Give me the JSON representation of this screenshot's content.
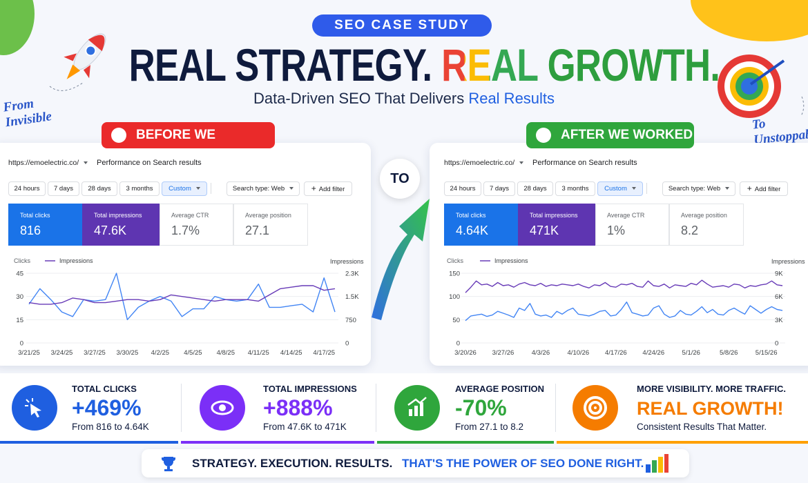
{
  "badge": "SEO CASE STUDY",
  "title": {
    "part_a": "REAL STRATEGY.",
    "part_b": "REAL",
    "part_c": "GROWTH."
  },
  "subtitle": {
    "text": "Data-Driven SEO That Delivers",
    "highlight": "Real Results"
  },
  "notes": {
    "from": "From Invisible",
    "to": "To Unstoppable"
  },
  "connector": "TO",
  "panels": [
    {
      "label": "BEFORE WE WORKED",
      "site": "https://emoelectric.co/",
      "report": "Performance on Search results",
      "ranges": [
        "24 hours",
        "7 days",
        "28 days",
        "3 months",
        "Custom"
      ],
      "search_type": "Search type: Web",
      "add_filter": "Add filter",
      "metrics": [
        {
          "label": "Total clicks",
          "value": "816"
        },
        {
          "label": "Total impressions",
          "value": "47.6K"
        },
        {
          "label": "Average CTR",
          "value": "1.7%"
        },
        {
          "label": "Average position",
          "value": "27.1"
        }
      ]
    },
    {
      "label": "AFTER WE WORKED",
      "site": "https://emoelectric.co/",
      "report": "Performance on Search results",
      "ranges": [
        "24 hours",
        "7 days",
        "28 days",
        "3 months",
        "Custom"
      ],
      "search_type": "Search type: Web",
      "add_filter": "Add filter",
      "metrics": [
        {
          "label": "Total clicks",
          "value": "4.64K"
        },
        {
          "label": "Total impressions",
          "value": "471K"
        },
        {
          "label": "Average CTR",
          "value": "1%"
        },
        {
          "label": "Average position",
          "value": "8.2"
        }
      ]
    }
  ],
  "stats": [
    {
      "label": "TOTAL CLICKS",
      "value": "+469%",
      "detail": "From 816 to 4.64K"
    },
    {
      "label": "TOTAL IMPRESSIONS",
      "value": "+888%",
      "detail": "From 47.6K to 471K"
    },
    {
      "label": "AVERAGE POSITION",
      "value": "-70%",
      "detail": "From 27.1 to 8.2"
    },
    {
      "label": "MORE VISIBILITY. MORE TRAFFIC.",
      "value": "REAL GROWTH!",
      "detail": "Consistent Results That Matter."
    }
  ],
  "footer": {
    "text": "STRATEGY. EXECUTION. RESULTS.",
    "highlight": "THAT'S THE POWER OF SEO DONE RIGHT."
  },
  "chart_data": [
    {
      "type": "line",
      "grid": true,
      "categories": [
        "3/21/25",
        null,
        null,
        "3/24/25",
        null,
        null,
        "3/27/25",
        null,
        null,
        "3/30/25",
        null,
        null,
        "4/2/25",
        null,
        null,
        "4/5/25",
        null,
        null,
        "4/8/25",
        null,
        null,
        "4/11/25",
        null,
        null,
        "4/14/25",
        null,
        null,
        "4/17/25",
        null
      ],
      "series": [
        {
          "name": "Clicks",
          "color": "#4285f4",
          "values": [
            25,
            35,
            28,
            20,
            17,
            28,
            27,
            28,
            45,
            15,
            23,
            27,
            30,
            27,
            17,
            22,
            22,
            30,
            28,
            27,
            28,
            38,
            23,
            23,
            24,
            25,
            20,
            42,
            20
          ]
        },
        {
          "name": "Impressions",
          "color": "#673ab7",
          "axis": "y2",
          "values": [
            1300,
            1250,
            1250,
            1300,
            1450,
            1400,
            1300,
            1300,
            1350,
            1400,
            1400,
            1350,
            1400,
            1550,
            1500,
            1450,
            1400,
            1350,
            1400,
            1400,
            1400,
            1350,
            1550,
            1750,
            1800,
            1850,
            1850,
            1700,
            1750
          ]
        }
      ],
      "y2_label": "Impressions",
      "ylim": [
        0,
        45
      ],
      "yticks": [
        0,
        15,
        30,
        45
      ],
      "y2lim": [
        0,
        2250
      ],
      "y2ticks": [
        0,
        750,
        {
          "value": 1500,
          "label": "1.5K"
        },
        {
          "value": 2250,
          "label": "2.3K"
        }
      ]
    },
    {
      "type": "line",
      "grid": true,
      "categories": [
        "3/20/26",
        null,
        null,
        null,
        null,
        null,
        null,
        "3/27/26",
        null,
        null,
        null,
        null,
        null,
        null,
        "4/3/26",
        null,
        null,
        null,
        null,
        null,
        null,
        "4/10/26",
        null,
        null,
        null,
        null,
        null,
        null,
        "4/17/26",
        null,
        null,
        null,
        null,
        null,
        null,
        "4/24/26",
        null,
        null,
        null,
        null,
        null,
        null,
        "5/1/26",
        null,
        null,
        null,
        null,
        null,
        null,
        "5/8/26",
        null,
        null,
        null,
        null,
        null,
        null,
        "5/15/26",
        null,
        null,
        null
      ],
      "series": [
        {
          "name": "Clicks",
          "color": "#4285f4",
          "values": [
            48,
            58,
            60,
            62,
            57,
            60,
            68,
            64,
            60,
            55,
            75,
            70,
            85,
            62,
            58,
            60,
            55,
            68,
            62,
            70,
            75,
            62,
            60,
            58,
            62,
            68,
            70,
            58,
            60,
            72,
            88,
            65,
            62,
            58,
            60,
            75,
            80,
            62,
            55,
            58,
            70,
            62,
            60,
            68,
            78,
            65,
            72,
            62,
            60,
            70,
            75,
            68,
            62,
            80,
            72,
            64,
            72,
            78,
            72,
            70
          ]
        },
        {
          "name": "Impressions",
          "color": "#673ab7",
          "axis": "y2",
          "values": [
            6500,
            7200,
            8000,
            7500,
            7600,
            7300,
            7800,
            7400,
            7500,
            7200,
            7600,
            7800,
            7500,
            7400,
            7700,
            7300,
            7500,
            7400,
            7600,
            7500,
            7400,
            7600,
            7300,
            7100,
            7500,
            7400,
            7800,
            7300,
            7200,
            7600,
            7500,
            7700,
            7300,
            7200,
            8000,
            7400,
            7300,
            7600,
            7100,
            7500,
            7400,
            7300,
            7700,
            7500,
            8100,
            7600,
            7200,
            7300,
            7400,
            7200,
            7600,
            7500,
            7100,
            7400,
            7300,
            7500,
            7600,
            8000,
            7500,
            7400
          ]
        }
      ],
      "y2_label": "Impressions",
      "ylim": [
        0,
        150
      ],
      "yticks": [
        0,
        50,
        100,
        150
      ],
      "y2lim": [
        0,
        9000
      ],
      "y2ticks": [
        0,
        {
          "value": 3000,
          "label": "3K"
        },
        {
          "value": 6000,
          "label": "6K"
        },
        {
          "value": 9000,
          "label": "9K"
        }
      ]
    }
  ]
}
